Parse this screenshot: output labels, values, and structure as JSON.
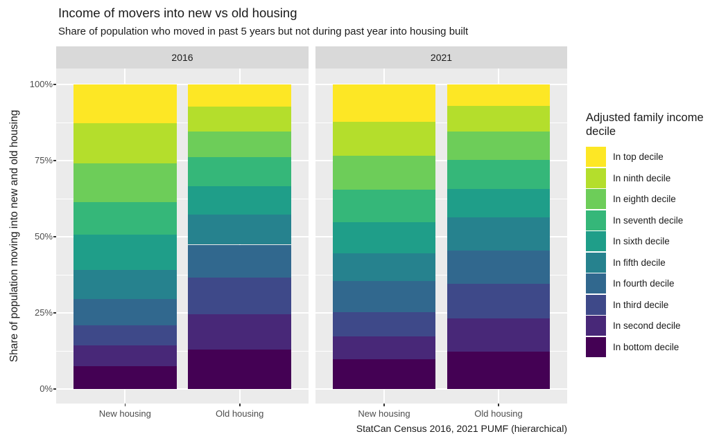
{
  "title": "Income of movers into new vs old housing",
  "subtitle": "Share of population who moved in past 5 years but not during past year into housing built",
  "caption": "StatCan Census 2016, 2021 PUMF (hierarchical)",
  "y_axis": {
    "title": "Share of population moving into new and old housing",
    "tick_labels": [
      "0%",
      "25%",
      "50%",
      "75%",
      "100%"
    ],
    "tick_values": [
      0,
      25,
      50,
      75,
      100
    ],
    "minor_values": [
      12.5,
      37.5,
      62.5,
      87.5
    ]
  },
  "x_axis": {
    "categories": [
      "New housing",
      "Old housing"
    ]
  },
  "legend": {
    "title": "Adjusted family income decile",
    "items": [
      {
        "label": "In top decile",
        "color": "#fde725"
      },
      {
        "label": "In ninth decile",
        "color": "#b4de2c"
      },
      {
        "label": "In eighth decile",
        "color": "#6dcd59"
      },
      {
        "label": "In seventh decile",
        "color": "#35b779"
      },
      {
        "label": "In sixth decile",
        "color": "#1f9e89"
      },
      {
        "label": "In fifth decile",
        "color": "#26828e"
      },
      {
        "label": "In fourth decile",
        "color": "#31688e"
      },
      {
        "label": "In third decile",
        "color": "#3e4989"
      },
      {
        "label": "In second decile",
        "color": "#482878"
      },
      {
        "label": "In bottom decile",
        "color": "#440154"
      }
    ]
  },
  "theme": {
    "panel_bg": "#ebebeb",
    "strip_bg": "#d9d9d9",
    "grid_color": "#ffffff",
    "axis_text_color": "#4d4d4d",
    "text_color": "#1a1a1a"
  },
  "chart_data": {
    "type": "bar",
    "stacked": true,
    "unit": "percent",
    "title": "Income of movers into new vs old housing",
    "xlabel": "",
    "ylabel": "Share of population moving into new and old housing",
    "ylim": [
      0,
      100
    ],
    "grid": true,
    "legend_position": "right",
    "facets": [
      "2016",
      "2021"
    ],
    "categories": [
      "New housing",
      "Old housing"
    ],
    "series_note": "values are percent shares per [facet][category], stacked bottom-to-top in listed order",
    "series": [
      {
        "name": "In bottom decile",
        "color": "#440154",
        "values": {
          "2016": [
            7.5,
            12.9
          ],
          "2021": [
            9.7,
            12.2
          ]
        }
      },
      {
        "name": "In second decile",
        "color": "#482878",
        "values": {
          "2016": [
            6.9,
            11.7
          ],
          "2021": [
            7.6,
            11.0
          ]
        }
      },
      {
        "name": "In third decile",
        "color": "#3e4989",
        "values": {
          "2016": [
            6.6,
            12.0
          ],
          "2021": [
            8.0,
            11.3
          ]
        }
      },
      {
        "name": "In fourth decile",
        "color": "#31688e",
        "values": {
          "2016": [
            8.5,
            10.8
          ],
          "2021": [
            10.1,
            11.0
          ]
        }
      },
      {
        "name": "In fifth decile",
        "color": "#26828e",
        "values": {
          "2016": [
            9.5,
            9.9
          ],
          "2021": [
            9.1,
            10.8
          ]
        }
      },
      {
        "name": "In sixth decile",
        "color": "#1f9e89",
        "values": {
          "2016": [
            11.6,
            9.2
          ],
          "2021": [
            10.2,
            9.5
          ]
        }
      },
      {
        "name": "In seventh decile",
        "color": "#35b779",
        "values": {
          "2016": [
            10.7,
            9.6
          ],
          "2021": [
            10.8,
            9.4
          ]
        }
      },
      {
        "name": "In eighth decile",
        "color": "#6dcd59",
        "values": {
          "2016": [
            12.7,
            8.4
          ],
          "2021": [
            11.1,
            9.3
          ]
        }
      },
      {
        "name": "In ninth decile",
        "color": "#b4de2c",
        "values": {
          "2016": [
            13.2,
            8.3
          ],
          "2021": [
            11.1,
            8.4
          ]
        }
      },
      {
        "name": "In top decile",
        "color": "#fde725",
        "values": {
          "2016": [
            12.8,
            7.2
          ],
          "2021": [
            12.3,
            7.1
          ]
        }
      }
    ]
  }
}
